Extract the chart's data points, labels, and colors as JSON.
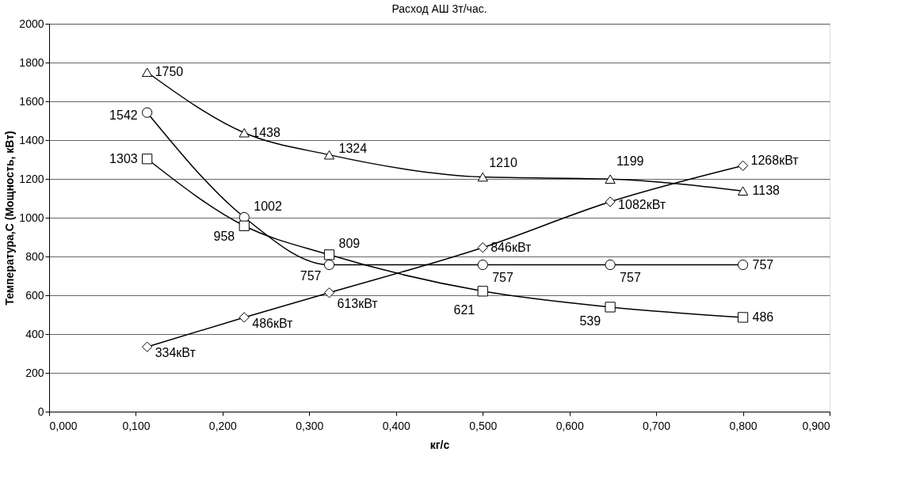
{
  "chart_data": {
    "type": "line",
    "title": "Расход АШ 3т/час.",
    "xlabel": "кг/с",
    "ylabel": "Температура,С (Мощность, кВт)",
    "x": [
      0.113,
      0.225,
      0.323,
      0.5,
      0.647,
      0.8
    ],
    "series": [
      {
        "color": "#000000",
        "marker": "circle",
        "values": [
          1542,
          1002,
          757,
          757,
          757,
          757
        ],
        "value_labels": [
          "1542",
          "1002",
          "757",
          "757",
          "757",
          "757"
        ]
      },
      {
        "color": "#000000",
        "marker": "square",
        "values": [
          1303,
          958,
          809,
          621,
          539,
          486
        ],
        "value_labels": [
          "1303",
          "958",
          "809",
          "621",
          "539",
          "486"
        ]
      },
      {
        "color": "#000000",
        "marker": "triangle",
        "values": [
          1750,
          1438,
          1324,
          1210,
          1199,
          1138
        ],
        "value_labels": [
          "1750",
          "1438",
          "1324",
          "1210",
          "1199",
          "1138"
        ]
      },
      {
        "color": "#000000",
        "marker": "diamond",
        "values": [
          334,
          486,
          613,
          846,
          1082,
          1268
        ],
        "value_labels": [
          "334кВт",
          "486кВт",
          "613кВт",
          "846кВт",
          "1082кВт",
          "1268кВт"
        ]
      }
    ],
    "xlim": [
      0,
      0.9
    ],
    "xticks": [
      {
        "value": 0,
        "label": "0,000"
      },
      {
        "value": 0.1,
        "label": "0,100"
      },
      {
        "value": 0.2,
        "label": "0,200"
      },
      {
        "value": 0.3,
        "label": "0,300"
      },
      {
        "value": 0.4,
        "label": "0,400"
      },
      {
        "value": 0.5,
        "label": "0,500"
      },
      {
        "value": 0.6,
        "label": "0,600"
      },
      {
        "value": 0.7,
        "label": "0,700"
      },
      {
        "value": 0.8,
        "label": "0,800"
      },
      {
        "value": 0.9,
        "label": "0,900"
      }
    ],
    "ylim": [
      0,
      2000
    ],
    "yticks": [
      0,
      200,
      400,
      600,
      800,
      1000,
      1200,
      1400,
      1600,
      1800,
      2000
    ],
    "grid": "y",
    "line_style": "solid"
  }
}
